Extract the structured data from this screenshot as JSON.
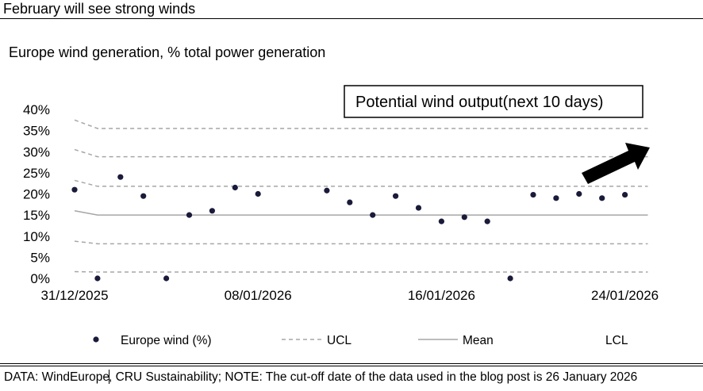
{
  "headline": "February will see strong winds",
  "source_prefix": "DATA: WindEurope",
  "source_suffix": ", CRU Sustainability; NOTE: The cut-off date of the data used in the blog post is 26 January 2026",
  "chart_data": {
    "type": "scatter",
    "title": "Europe wind generation, % total power generation",
    "annotation": "Potential wind output(next 10 days)",
    "x_tick_labels": [
      "31/12/2025",
      "08/01/2026",
      "16/01/2026",
      "24/01/2026"
    ],
    "y_tick_labels": [
      "40%",
      "35%",
      "30%",
      "25%",
      "20%",
      "15%",
      "10%",
      "5%",
      "0%"
    ],
    "ylim": [
      0,
      40
    ],
    "grid": false,
    "legend_position": "bottom",
    "x_dates": [
      "31/12/2025",
      "01/01/2026",
      "02/01/2026",
      "03/01/2026",
      "04/01/2026",
      "05/01/2026",
      "06/01/2026",
      "07/01/2026",
      "08/01/2026",
      "09/01/2026",
      "10/01/2026",
      "11/01/2026",
      "12/01/2026",
      "13/01/2026",
      "14/01/2026",
      "15/01/2026",
      "16/01/2026",
      "17/01/2026",
      "18/01/2026",
      "19/01/2026",
      "20/01/2026",
      "21/01/2026",
      "22/01/2026",
      "23/01/2026",
      "24/01/2026",
      "25/01/2026"
    ],
    "series": [
      {
        "name": "Europe wind (%)",
        "style": "dots",
        "color": "#1a1a3a",
        "values": [
          21,
          0,
          24,
          19.5,
          0,
          15,
          16,
          21.5,
          20,
          null,
          null,
          20.8,
          18,
          15,
          19.5,
          16.7,
          13.5,
          14.5,
          13.5,
          0,
          19.8,
          19,
          20,
          19,
          19.8,
          null
        ]
      },
      {
        "name": "UCL",
        "style": "dashed",
        "color": "#a6a6a6",
        "bands": [
          [
            37.5,
            35.5,
            35.5,
            35.5,
            35.5,
            35.5,
            35.5,
            35.5,
            35.5,
            35.5,
            35.5,
            35.5,
            35.5,
            35.5,
            35.5,
            35.5,
            35.5,
            35.5,
            35.5,
            35.5,
            35.5,
            35.5,
            35.5,
            35.5,
            35.5,
            35.5
          ],
          [
            30.5,
            28.8,
            28.8,
            28.8,
            28.8,
            28.8,
            28.8,
            28.8,
            28.8,
            28.8,
            28.8,
            28.8,
            28.8,
            28.8,
            28.8,
            28.8,
            28.8,
            28.8,
            28.8,
            28.8,
            28.8,
            28.8,
            28.8,
            28.8,
            28.8,
            28.8
          ],
          [
            23.2,
            21.8,
            21.8,
            21.8,
            21.8,
            21.8,
            21.8,
            21.8,
            21.8,
            21.8,
            21.8,
            21.8,
            21.8,
            21.8,
            21.8,
            21.8,
            21.8,
            21.8,
            21.8,
            21.8,
            21.8,
            21.8,
            21.8,
            21.8,
            21.8,
            21.8
          ]
        ]
      },
      {
        "name": "Mean",
        "style": "solid",
        "color": "#a6a6a6",
        "values": [
          16,
          15,
          15,
          15,
          15,
          15,
          15,
          15,
          15,
          15,
          15,
          15,
          15,
          15,
          15,
          15,
          15,
          15,
          15,
          15,
          15,
          15,
          15,
          15,
          15,
          15
        ]
      },
      {
        "name": "LCL",
        "style": "dashed",
        "color": "#a6a6a6",
        "bands": [
          [
            8.8,
            8.2,
            8.2,
            8.2,
            8.2,
            8.2,
            8.2,
            8.2,
            8.2,
            8.2,
            8.2,
            8.2,
            8.2,
            8.2,
            8.2,
            8.2,
            8.2,
            8.2,
            8.2,
            8.2,
            8.2,
            8.2,
            8.2,
            8.2,
            8.2,
            8.2
          ],
          [
            1.6,
            1.5,
            1.5,
            1.5,
            1.5,
            1.5,
            1.5,
            1.5,
            1.5,
            1.5,
            1.5,
            1.5,
            1.5,
            1.5,
            1.5,
            1.5,
            1.5,
            1.5,
            1.5,
            1.5,
            1.5,
            1.5,
            1.5,
            1.5,
            1.5,
            1.5
          ]
        ]
      }
    ]
  }
}
